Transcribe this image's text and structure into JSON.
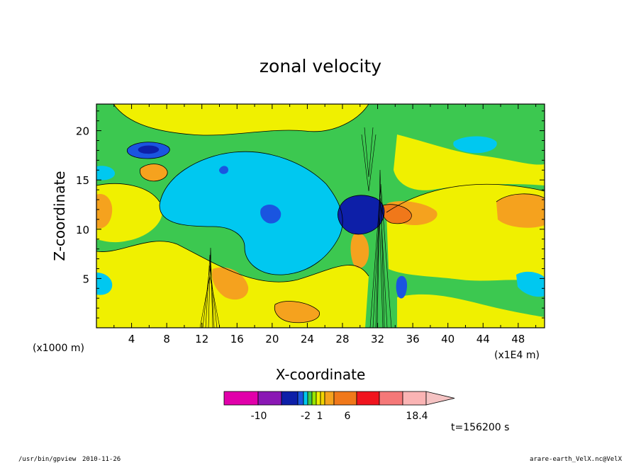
{
  "chart_data": {
    "type": "heatmap",
    "title": "zonal velocity",
    "xlabel": "X-coordinate",
    "ylabel": "Z-coordinate",
    "x_unit_note": "(x1000 m)",
    "x_scale_note": "(x1E4 m)",
    "xticks": [
      "4",
      "8",
      "12",
      "16",
      "20",
      "24",
      "28",
      "32",
      "36",
      "40",
      "44",
      "48"
    ],
    "yticks": [
      "5",
      "10",
      "15",
      "20"
    ],
    "xlim": [
      0,
      51
    ],
    "ylim": [
      0,
      22.7
    ],
    "colorbar": {
      "labels": [
        "-10",
        "-2",
        "1",
        "6",
        "18.4"
      ],
      "colors": [
        "#e100aa",
        "#8a18b4",
        "#0d1fa8",
        "#1a55e0",
        "#00c8f0",
        "#3cc850",
        "#9ae600",
        "#f0f000",
        "#f2d400",
        "#f5a21e",
        "#f0781a",
        "#f0141e",
        "#f57878",
        "#fab4b4",
        "#f5c3c3"
      ]
    },
    "features": [
      {
        "name": "upper-left negative cell",
        "x": 6,
        "z": 18.2,
        "value": -6
      },
      {
        "name": "central negative region",
        "x": 21,
        "z": 11.5,
        "value": -1
      },
      {
        "name": "negative core near mountain",
        "x": 31,
        "z": 12.2,
        "value": -8
      },
      {
        "name": "positive core near mountain",
        "x": 34.5,
        "z": 11.6,
        "value": 8
      },
      {
        "name": "right positive region",
        "x": 48,
        "z": 11.8,
        "value": 5
      },
      {
        "name": "left positive region",
        "x": 1,
        "z": 11.8,
        "value": 4
      },
      {
        "name": "lower positive region",
        "x": 22,
        "z": 2,
        "value": 4
      }
    ]
  },
  "time_label": "t=156200 s",
  "footer": {
    "left_path": "/usr/bin/gpview",
    "left_date": "2010-11-26",
    "right_file": "arare-earth_VelX.nc@VelX"
  }
}
